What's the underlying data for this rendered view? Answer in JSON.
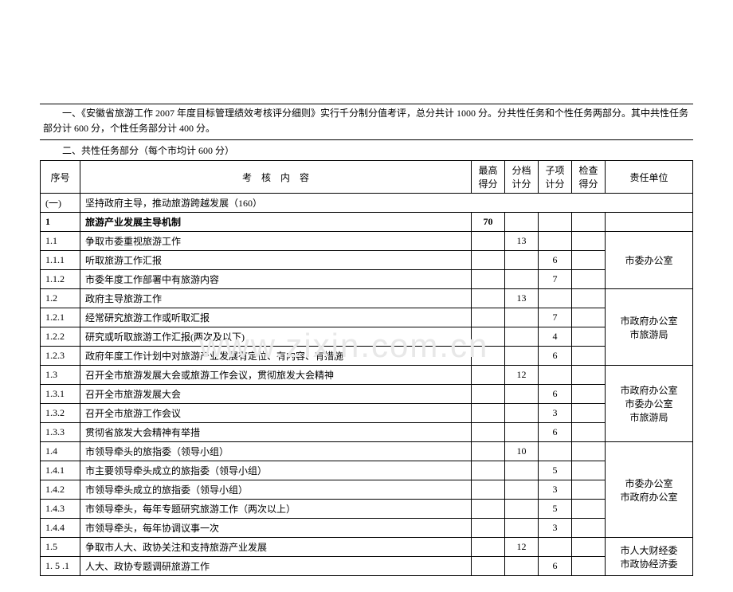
{
  "intro": {
    "line1": "一、《安徽省旅游工作 2007 年度目标管理绩效考核评分细则》实行千分制分值考评，总分共计 1000 分。分共性任务和个性任务两部分。其中共性任务部分计 600 分，个性任务部分计 400 分。",
    "line2": "二、共性任务部分（每个市均计 600 分）"
  },
  "headers": {
    "no": "序号",
    "content": "考　核　内　容",
    "max": "最高得分",
    "tier": "分档计分",
    "sub": "子项计分",
    "check": "检查得分",
    "unit": "责任单位"
  },
  "rows": [
    {
      "no": "(一)",
      "content": "坚持政府主导，推动旅游跨越发展（160）",
      "max": "",
      "tier": "",
      "sub": "",
      "unit": "",
      "bold": false,
      "span": 6
    },
    {
      "no": "1",
      "content": "旅游产业发展主导机制",
      "max": "70",
      "tier": "",
      "sub": "",
      "unit": "",
      "bold": true
    },
    {
      "no": "1.1",
      "content": "争取市委重视旅游工作",
      "max": "",
      "tier": "13",
      "sub": "",
      "unit": ""
    },
    {
      "no": "1.1.1",
      "content": "听取旅游工作汇报",
      "max": "",
      "tier": "",
      "sub": "6",
      "unit": ""
    },
    {
      "no": "1.1.2",
      "content": "市委年度工作部署中有旅游内容",
      "max": "",
      "tier": "",
      "sub": "7",
      "unit": ""
    },
    {
      "no": "1.2",
      "content": "政府主导旅游工作",
      "max": "",
      "tier": "13",
      "sub": "",
      "unit": ""
    },
    {
      "no": "1.2.1",
      "content": "经常研究旅游工作或听取汇报",
      "max": "",
      "tier": "",
      "sub": "7",
      "unit": ""
    },
    {
      "no": "1.2.2",
      "content": "研究或听取旅游工作汇报(两次及以下)",
      "max": "",
      "tier": "",
      "sub": "4",
      "unit": ""
    },
    {
      "no": "1.2.3",
      "content": "政府年度工作计划中对旅游产业发展有定位、有内容、有措施",
      "max": "",
      "tier": "",
      "sub": "6",
      "unit": ""
    },
    {
      "no": "1.3",
      "content": "召开全市旅游发展大会或旅游工作会议，贯彻旅发大会精神",
      "max": "",
      "tier": "12",
      "sub": "",
      "unit": ""
    },
    {
      "no": "1.3.1",
      "content": "召开全市旅游发展大会",
      "max": "",
      "tier": "",
      "sub": "6",
      "unit": ""
    },
    {
      "no": "1.3.2",
      "content": "召开全市旅游工作会议",
      "max": "",
      "tier": "",
      "sub": "3",
      "unit": ""
    },
    {
      "no": "1.3.3",
      "content": "贯彻省旅发大会精神有举措",
      "max": "",
      "tier": "",
      "sub": "6",
      "unit": ""
    },
    {
      "no": "1.4",
      "content": "市领导牵头的旅指委（领导小组）",
      "max": "",
      "tier": "10",
      "sub": "",
      "unit": ""
    },
    {
      "no": "1.4.1",
      "content": "市主要领导牵头成立的旅指委（领导小组）",
      "max": "",
      "tier": "",
      "sub": "5",
      "unit": ""
    },
    {
      "no": "1.4.2",
      "content": "市领导牵头成立的旅指委（领导小组）",
      "max": "",
      "tier": "",
      "sub": "3",
      "unit": ""
    },
    {
      "no": "1.4.3",
      "content": "市领导牵头，每年专题研究旅游工作（两次以上）",
      "max": "",
      "tier": "",
      "sub": "5",
      "unit": ""
    },
    {
      "no": "1.4.4",
      "content": "市领导牵头，每年协调议事一次",
      "max": "",
      "tier": "",
      "sub": "3",
      "unit": ""
    },
    {
      "no": "1.5",
      "content": "争取市人大、政协关注和支持旅游产业发展",
      "max": "",
      "tier": "12",
      "sub": "",
      "unit": ""
    },
    {
      "no": "1. 5 .1",
      "content": "人大、政协专题调研旅游工作",
      "max": "",
      "tier": "",
      "sub": "6",
      "unit": ""
    }
  ],
  "units": {
    "u1": "市委办公室",
    "u2": "市政府办公室\n市旅游局",
    "u3": "市政府办公室\n市委办公室\n市旅游局",
    "u4": "市委办公室\n市政府办公室",
    "u5": "市人大财经委\n市政协经济委"
  },
  "watermark": "www.zixin.com.cn",
  "colors": {
    "bg": "#ffffff",
    "text": "#000000",
    "border": "#000000",
    "watermark": "#e8e8e8"
  },
  "fontsize": 12
}
